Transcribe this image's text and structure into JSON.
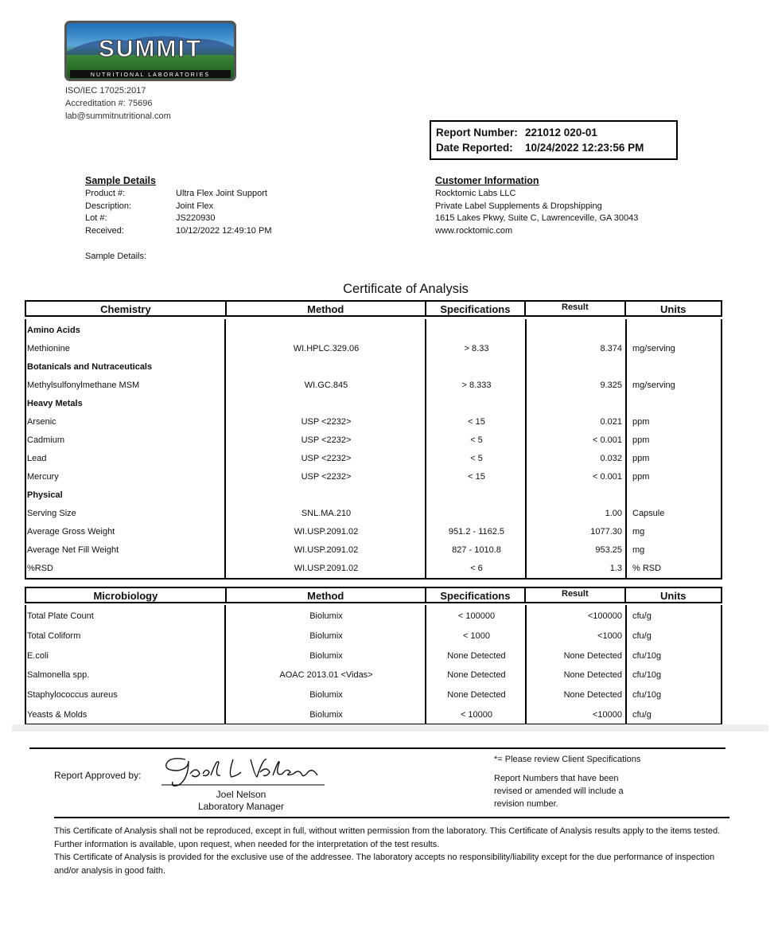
{
  "lab": {
    "logo_text": "SUMMIT",
    "logo_subtext": "NUTRITIONAL LABORATORIES",
    "iso": "ISO/IEC 17025:2017",
    "accreditation": "Accreditation #: 75696",
    "email": "lab@summitnutritional.com"
  },
  "report": {
    "number_label": "Report Number:",
    "number": "221012 020-01",
    "date_label": "Date Reported:",
    "date": "10/24/2022 12:23:56 PM"
  },
  "sample": {
    "title": "Sample Details",
    "fields": [
      {
        "label": "Product #:",
        "value": "Ultra Flex Joint Support"
      },
      {
        "label": "Description:",
        "value": "Joint Flex"
      },
      {
        "label": "Lot #:",
        "value": "JS220930"
      },
      {
        "label": "Received:",
        "value": "10/12/2022 12:49:10 PM"
      }
    ],
    "details_label": "Sample Details:"
  },
  "customer": {
    "title": "Customer Information",
    "lines": [
      "Rocktomic Labs LLC",
      "Private Label Supplements & Dropshipping",
      "1615 Lakes Pkwy, Suite C, Lawrenceville, GA 30043",
      "www.rocktomic.com"
    ]
  },
  "coa_title": "Certificate of Analysis",
  "chemistry": {
    "headers": [
      "Chemistry",
      "Method",
      "Specifications",
      "Result",
      "Units"
    ],
    "rows": [
      {
        "section": "Amino Acids"
      },
      {
        "name": "Methionine",
        "method": "WI.HPLC.329.06",
        "spec": "> 8.33",
        "result": "8.374",
        "units": "mg/serving"
      },
      {
        "section": "Botanicals and Nutraceuticals"
      },
      {
        "name": "Methylsulfonylmethane MSM",
        "method": "WI.GC.845",
        "spec": "> 8.333",
        "result": "9.325",
        "units": "mg/serving"
      },
      {
        "section": "Heavy Metals"
      },
      {
        "name": "Arsenic",
        "method": "USP <2232>",
        "spec": "< 15",
        "result": "0.021",
        "units": "ppm"
      },
      {
        "name": "Cadmium",
        "method": "USP <2232>",
        "spec": "< 5",
        "result": "< 0.001",
        "units": "ppm"
      },
      {
        "name": "Lead",
        "method": "USP <2232>",
        "spec": "< 5",
        "result": "0.032",
        "units": "ppm"
      },
      {
        "name": "Mercury",
        "method": "USP <2232>",
        "spec": "< 15",
        "result": "< 0.001",
        "units": "ppm"
      },
      {
        "section": "Physical"
      },
      {
        "name": "Serving Size",
        "method": "SNL.MA.210",
        "spec": "",
        "result": "1.00",
        "units": "Capsule"
      },
      {
        "name": "Average Gross Weight",
        "method": "WI.USP.2091.02",
        "spec": "951.2 - 1162.5",
        "result": "1077.30",
        "units": "mg"
      },
      {
        "name": "Average Net Fill Weight",
        "method": "WI.USP.2091.02",
        "spec": "827 - 1010.8",
        "result": "953.25",
        "units": "mg"
      },
      {
        "name": "%RSD",
        "method": "WI.USP.2091.02",
        "spec": "< 6",
        "result": "1.3",
        "units": "% RSD"
      }
    ]
  },
  "microbiology": {
    "headers": [
      "Microbiology",
      "Method",
      "Specifications",
      "Result",
      "Units"
    ],
    "rows": [
      {
        "name": "Total Plate Count",
        "method": "Biolumix",
        "spec": "< 100000",
        "result": "<100000",
        "units": "cfu/g"
      },
      {
        "name": "Total Coliform",
        "method": "Biolumix",
        "spec": "< 1000",
        "result": "<1000",
        "units": "cfu/g"
      },
      {
        "name": "E.coli",
        "method": "Biolumix",
        "spec": "None Detected",
        "result": "None Detected",
        "units": "cfu/10g"
      },
      {
        "name": "Salmonella spp.",
        "method": "AOAC 2013.01 <Vidas>",
        "spec": "None Detected",
        "result": "None Detected",
        "units": "cfu/10g"
      },
      {
        "name": "Staphylococcus aureus",
        "method": "Biolumix",
        "spec": "None Detected",
        "result": "None Detected",
        "units": "cfu/10g"
      },
      {
        "name": "Yeasts & Molds",
        "method": "Biolumix",
        "spec": "< 10000",
        "result": "<10000",
        "units": "cfu/g"
      }
    ]
  },
  "approval": {
    "label": "Report Approved by:",
    "signature": "Joel L Nelson",
    "name": "Joel Nelson",
    "title": "Laboratory Manager"
  },
  "notes": {
    "client_spec": "*= Please review Client Specifications",
    "revision": [
      "Report Numbers that have been",
      "revised or amended will include a",
      "revision number."
    ]
  },
  "disclaimer": [
    "This Certificate of Analysis shall not be reproduced, except in full, without written permission from the laboratory. This Certificate of Analysis results apply to the items tested. Further information is available, upon request, when needed for the interpretation of the test results.",
    "This Certificate of Analysis is provided for the exclusive use of the addressee. The laboratory accepts no responsibility/liability except for the due performance of inspection and/or analysis in good faith."
  ]
}
